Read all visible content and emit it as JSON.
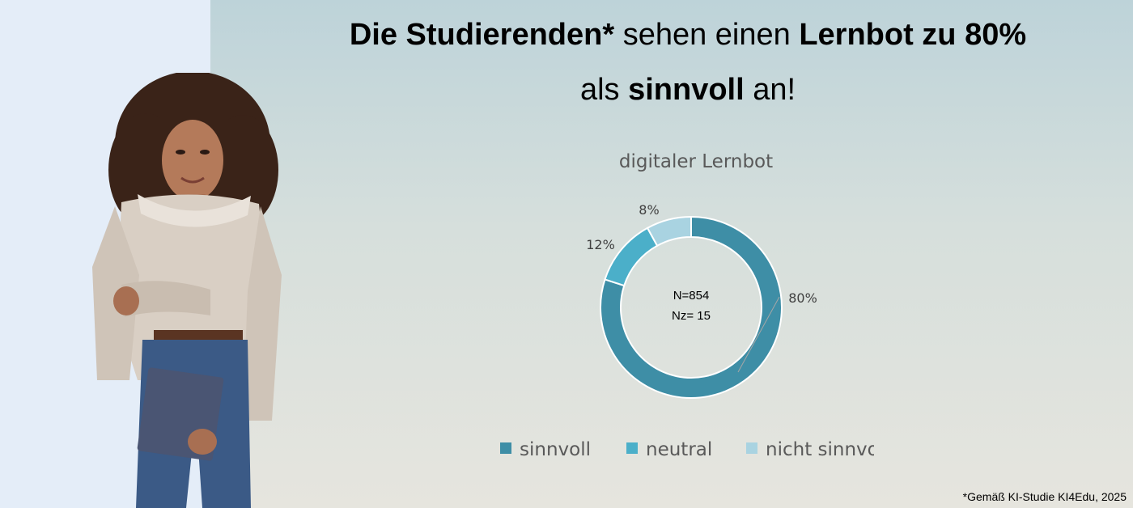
{
  "headline": {
    "l1_bold": "Die Studierenden*",
    "l1_normal": " sehen einen ",
    "l1_bold2": "Lernbot zu 80%",
    "l2_normal1": "als ",
    "l2_bold": "sinnvoll",
    "l2_normal2": " an!"
  },
  "chart_data": {
    "type": "pie",
    "variant": "donut",
    "title": "digitaler Lernbot",
    "categories": [
      "sinnvoll",
      "neutral",
      "nicht sinnvoll"
    ],
    "values": [
      80,
      12,
      8
    ],
    "data_labels": [
      "80%",
      "12%",
      "8%"
    ],
    "colors": [
      "#3e8ea6",
      "#4bafc9",
      "#a9d3e1"
    ],
    "center_text": [
      "N=854",
      "Nz= 15"
    ],
    "legend_position": "bottom"
  },
  "footnote": "*Gemäß KI-Studie KI4Edu, 2025"
}
